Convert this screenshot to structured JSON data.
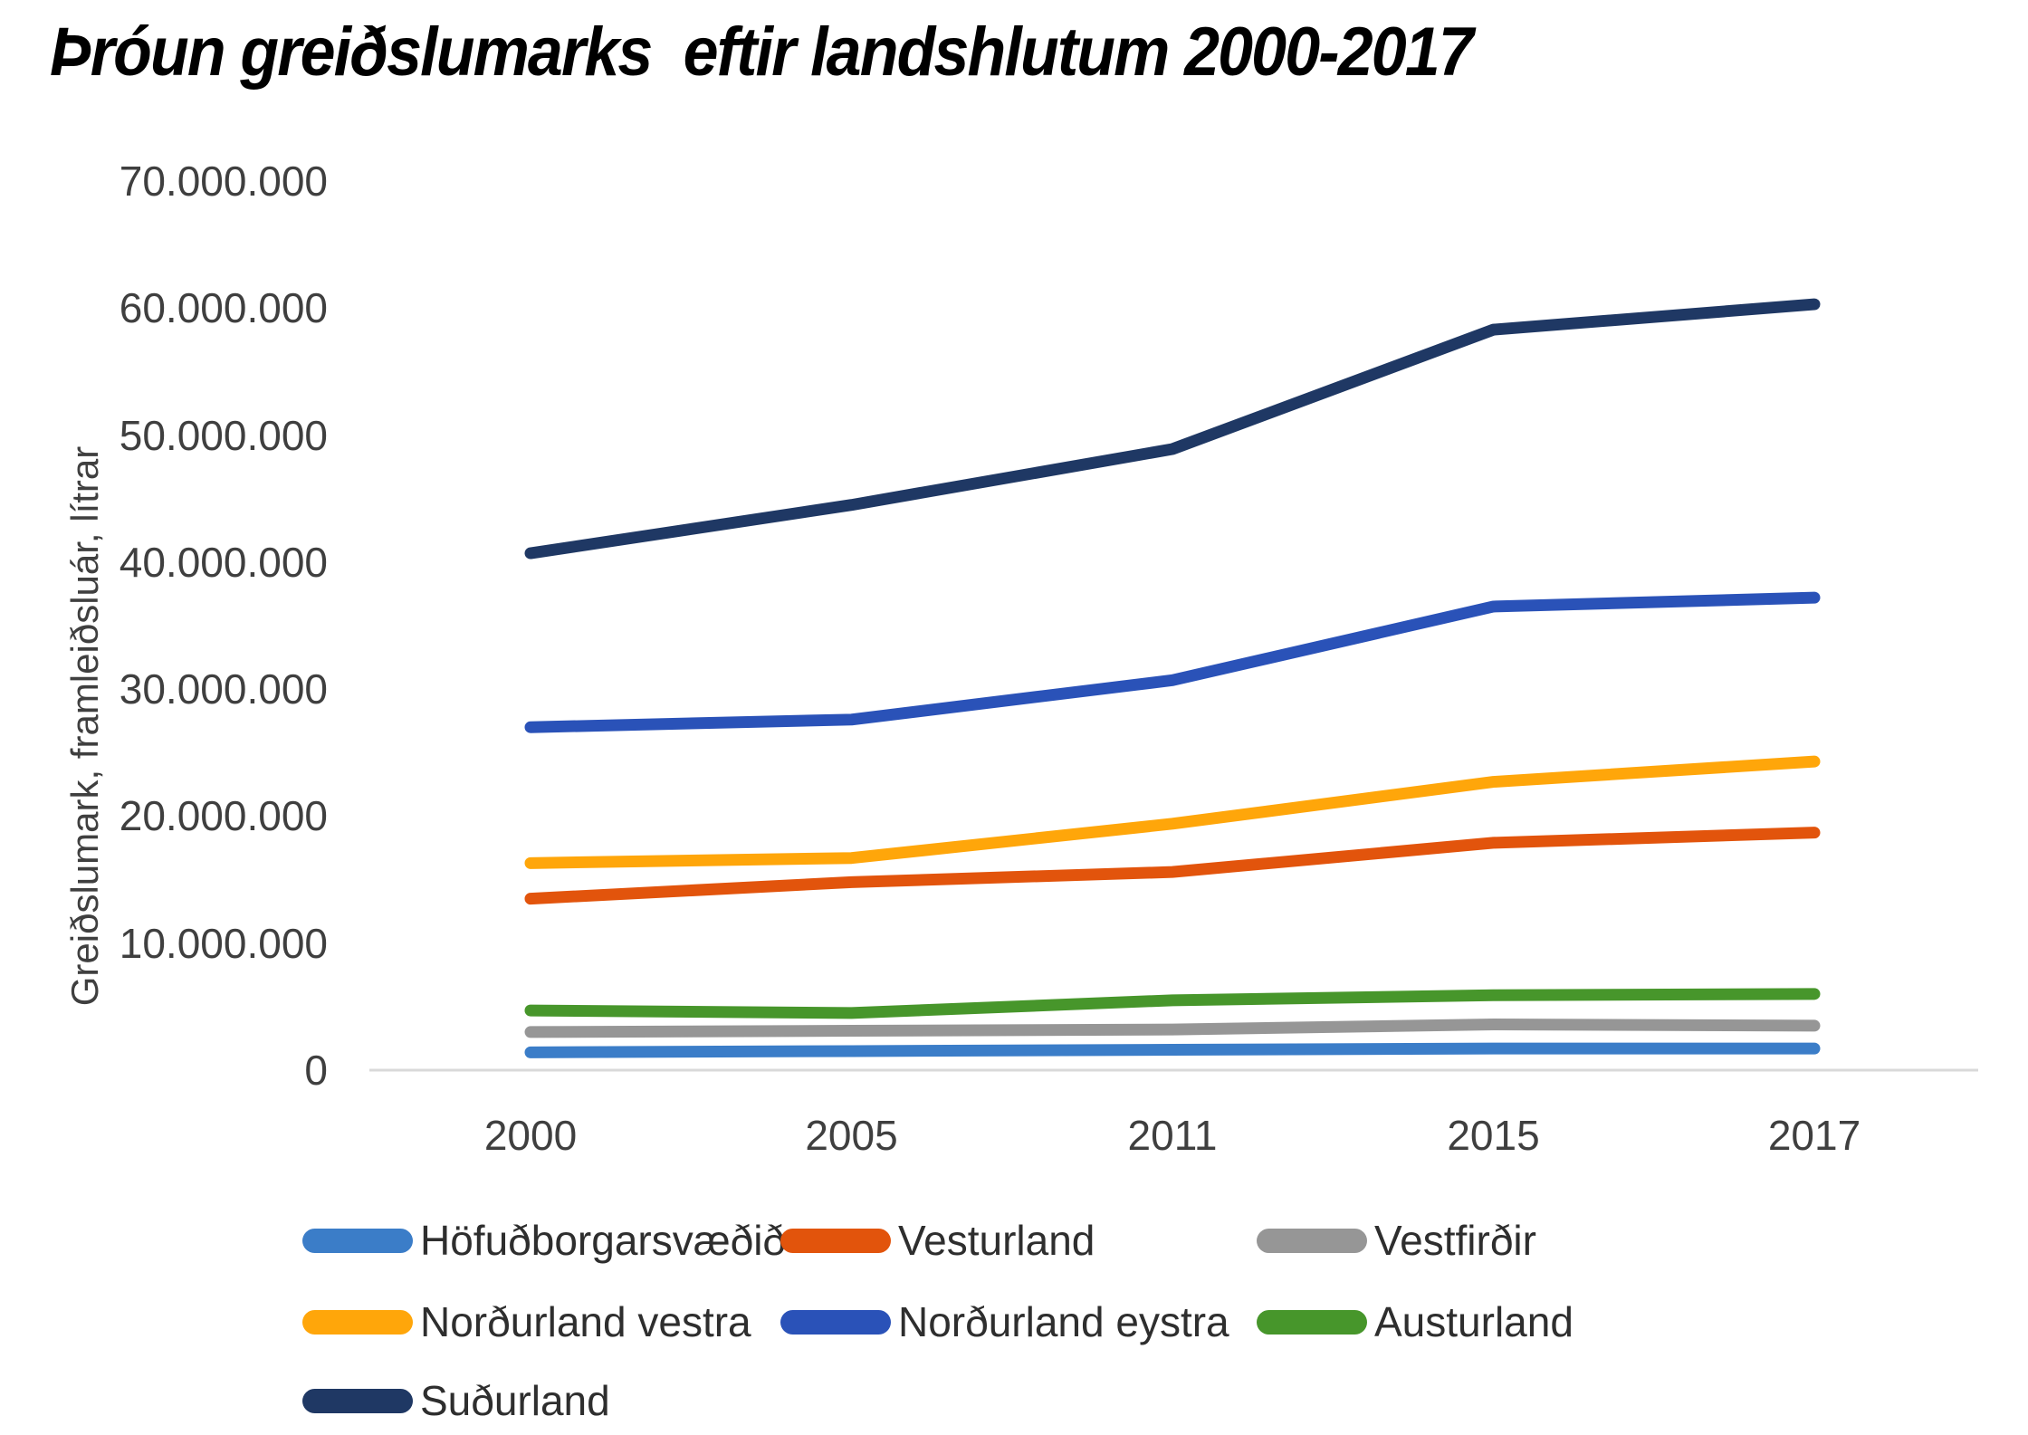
{
  "title": "Þróun greiðslumarks  eftir landshlutum 2000-2017",
  "chart_data": {
    "type": "line",
    "title": "Þróun greiðslumarks  eftir landshlutum 2000-2017",
    "xlabel": "",
    "ylabel": "Greiðslumark, framleiðsluár, lítrar",
    "categories": [
      "2000",
      "2005",
      "2011",
      "2015",
      "2017"
    ],
    "ylim": [
      0,
      70000000
    ],
    "grid": false,
    "legend_position": "bottom",
    "axis_line_color": "#d9d9d9",
    "y_ticks": [
      {
        "value": 70000000,
        "label": "70.000.000"
      },
      {
        "value": 60000000,
        "label": "60.000.000"
      },
      {
        "value": 50000000,
        "label": "50.000.000"
      },
      {
        "value": 40000000,
        "label": "40.000.000"
      },
      {
        "value": 30000000,
        "label": "30.000.000"
      },
      {
        "value": 20000000,
        "label": "20.000.000"
      },
      {
        "value": 10000000,
        "label": "10.000.000"
      },
      {
        "value": 0,
        "label": "0"
      }
    ],
    "series": [
      {
        "name": "Höfuðborgarsvæðið",
        "color": "#3b7dc8",
        "values": [
          1400000,
          1500000,
          1600000,
          1700000,
          1700000
        ]
      },
      {
        "name": "Vesturland",
        "color": "#e2540c",
        "values": [
          13500000,
          14800000,
          15600000,
          17900000,
          18700000
        ]
      },
      {
        "name": "Vestfirðir",
        "color": "#969696",
        "values": [
          3000000,
          3100000,
          3200000,
          3600000,
          3500000
        ]
      },
      {
        "name": "Norðurland vestra",
        "color": "#ffa60a",
        "values": [
          16300000,
          16700000,
          19400000,
          22700000,
          24300000
        ]
      },
      {
        "name": "Norðurland eystra",
        "color": "#2a52b8",
        "values": [
          27000000,
          27600000,
          30700000,
          36500000,
          37200000
        ]
      },
      {
        "name": "Austurland",
        "color": "#47962b",
        "values": [
          4700000,
          4500000,
          5500000,
          5900000,
          6000000
        ]
      },
      {
        "name": "Suðurland",
        "color": "#1f3864",
        "values": [
          40700000,
          44500000,
          48900000,
          58300000,
          60300000
        ]
      }
    ],
    "legend_rows": [
      [
        0,
        1,
        2
      ],
      [
        3,
        4,
        5
      ],
      [
        6
      ]
    ]
  }
}
